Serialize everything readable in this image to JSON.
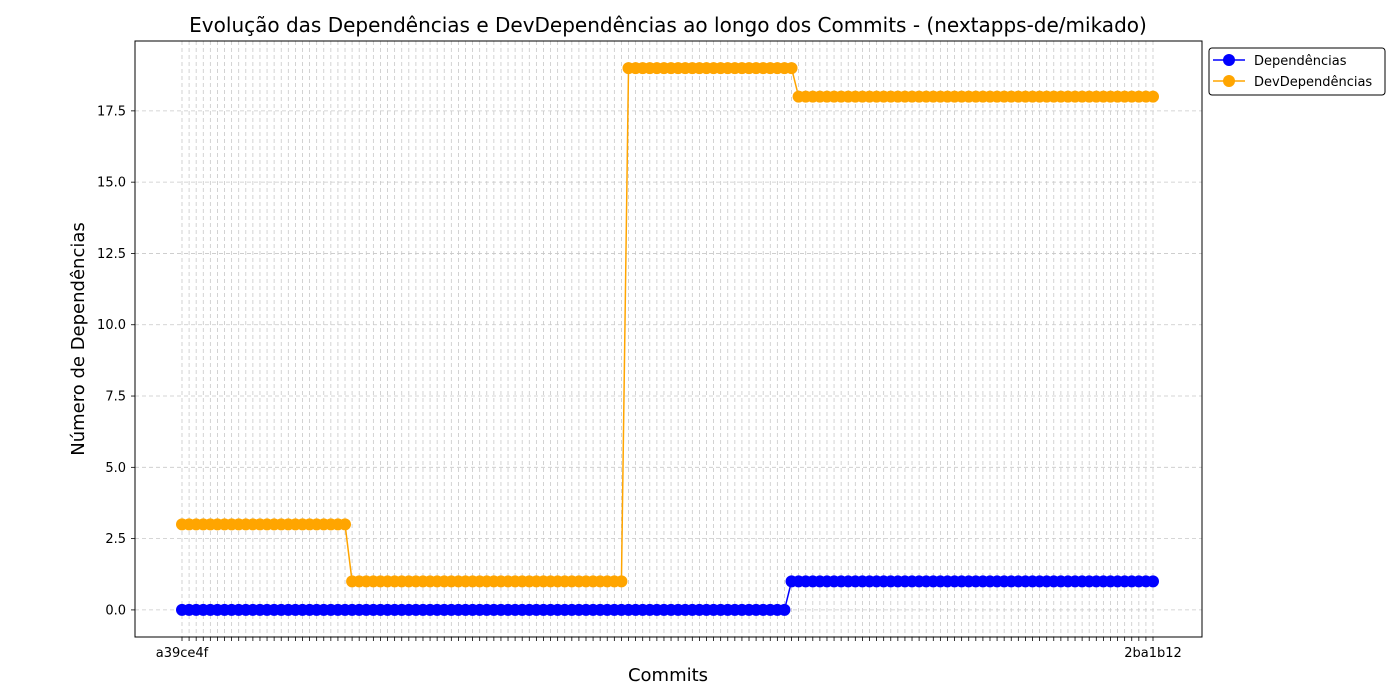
{
  "chart_data": {
    "type": "line",
    "title": "Evolução das Dependências e DevDependências ao longo dos Commits - (nextapps-de/mikado)",
    "xlabel": "Commits",
    "ylabel": "Número de Dependências",
    "ylim": [
      -0.95,
      19.95
    ],
    "yticks": [
      "0.0",
      "2.5",
      "5.0",
      "7.5",
      "10.0",
      "12.5",
      "15.0",
      "17.5"
    ],
    "xtick_first": "a39ce4f",
    "xtick_last": "2ba1b12",
    "grid": true,
    "legend_position": "top-right outside",
    "series": [
      {
        "name": "Dependências",
        "color": "#0000ff",
        "segments": [
          {
            "count": 86,
            "value": 0
          },
          {
            "count": 52,
            "value": 1
          }
        ]
      },
      {
        "name": "DevDependências",
        "color": "#ffa500",
        "segments": [
          {
            "count": 24,
            "value": 3
          },
          {
            "count": 39,
            "value": 1
          },
          {
            "count": 24,
            "value": 19
          },
          {
            "count": 51,
            "value": 18
          }
        ]
      }
    ]
  }
}
